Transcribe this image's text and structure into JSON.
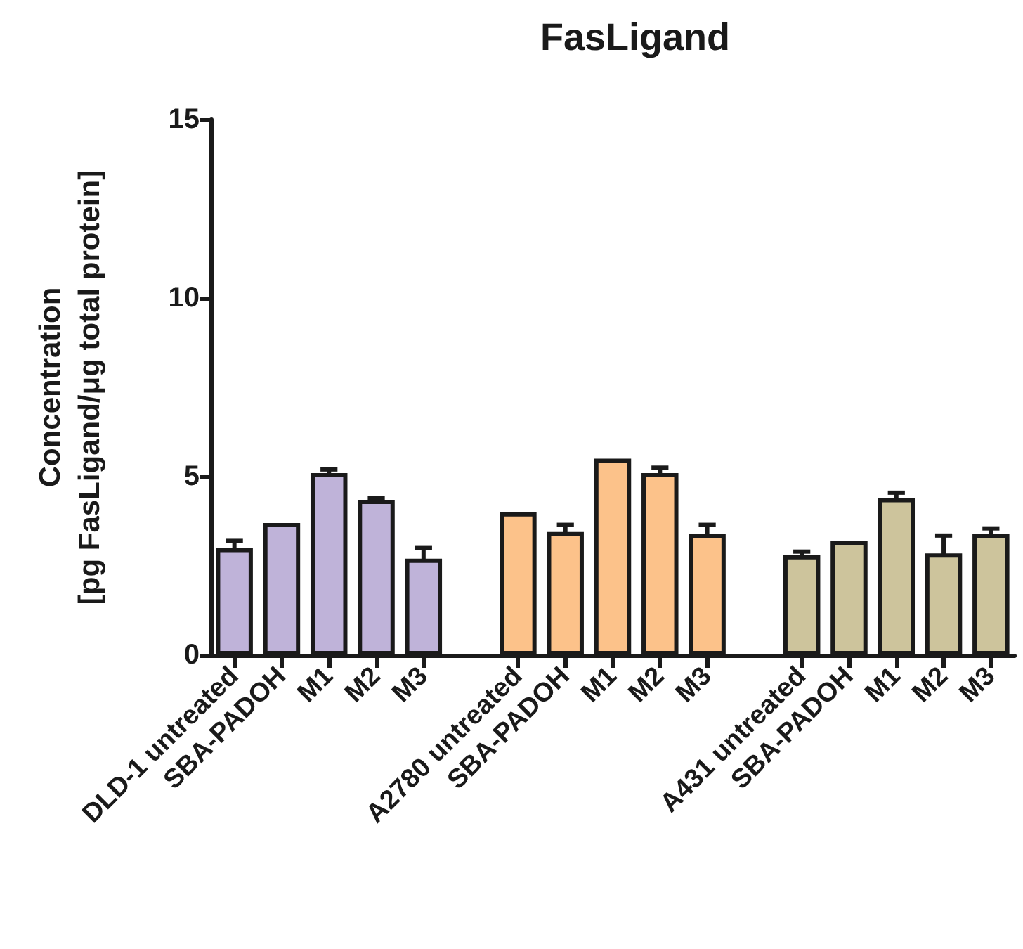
{
  "chart_data": {
    "type": "bar",
    "title": "FasLigand",
    "ylabel": "Concentration\n[pg FasLigand/μg total protein]",
    "categories": [
      "DLD-1 untreated",
      "SBA-PADOH",
      "M1",
      "M2",
      "M3",
      null,
      "A2780 untreated",
      "SBA-PADOH",
      "M1",
      "M2",
      "M3",
      null,
      "A431 untreated",
      "SBA-PADOH",
      "M1",
      "M2",
      "M3"
    ],
    "values": [
      3.0,
      3.7,
      5.1,
      4.35,
      2.7,
      null,
      4.0,
      3.45,
      5.5,
      5.1,
      3.4,
      null,
      2.8,
      3.2,
      4.4,
      2.85,
      3.4
    ],
    "errors": [
      0.2,
      null,
      0.1,
      0.05,
      0.3,
      null,
      null,
      0.2,
      null,
      0.15,
      0.25,
      null,
      0.1,
      null,
      0.15,
      0.5,
      0.15
    ],
    "colors": [
      "#bfb3d9",
      "#bfb3d9",
      "#bfb3d9",
      "#bfb3d9",
      "#bfb3d9",
      null,
      "#fcc28a",
      "#fcc28a",
      "#fcc28a",
      "#fcc28a",
      "#fcc28a",
      null,
      "#cdc49c",
      "#cdc49c",
      "#cdc49c",
      "#cdc49c",
      "#cdc49c"
    ],
    "ylim": [
      0,
      15
    ],
    "yticks": [
      0,
      5,
      10,
      15
    ],
    "grid": false
  }
}
